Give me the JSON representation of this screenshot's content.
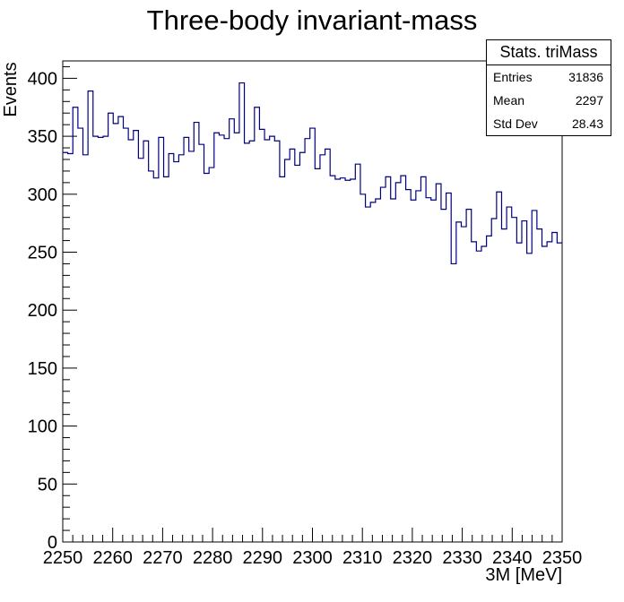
{
  "chart_data": {
    "type": "bar",
    "title": "Three-body invariant-mass",
    "xlabel": "3M [MeV]",
    "ylabel": "Events",
    "xlim": [
      2250,
      2350
    ],
    "ylim": [
      0,
      415
    ],
    "bin_edges_start": 2250,
    "bin_width": 1,
    "x_ticks": [
      2250,
      2260,
      2270,
      2280,
      2290,
      2300,
      2310,
      2320,
      2330,
      2340,
      2350
    ],
    "y_ticks": [
      0,
      50,
      100,
      150,
      200,
      250,
      300,
      350,
      400
    ],
    "values": [
      336,
      335,
      375,
      357,
      334,
      389,
      350,
      349,
      350,
      370,
      361,
      367,
      357,
      347,
      355,
      331,
      346,
      320,
      314,
      349,
      315,
      335,
      328,
      334,
      349,
      337,
      362,
      343,
      318,
      323,
      353,
      351,
      348,
      365,
      353,
      396,
      344,
      346,
      375,
      356,
      347,
      350,
      346,
      315,
      330,
      339,
      325,
      336,
      348,
      357,
      322,
      334,
      339,
      316,
      313,
      314,
      312,
      313,
      326,
      300,
      289,
      293,
      296,
      306,
      315,
      296,
      310,
      316,
      304,
      295,
      303,
      315,
      297,
      295,
      309,
      287,
      301,
      240,
      276,
      272,
      287,
      259,
      251,
      255,
      264,
      279,
      302,
      270,
      289,
      280,
      258,
      277,
      249,
      286,
      270,
      255,
      259,
      267,
      258
    ],
    "color": "#000080",
    "legend": "stats box top-right"
  },
  "stats": {
    "title": "Stats. triMass",
    "rows": [
      {
        "label": "Entries",
        "value": "31836"
      },
      {
        "label": "Mean",
        "value": "2297"
      },
      {
        "label": "Std Dev",
        "value": "28.43"
      }
    ]
  }
}
